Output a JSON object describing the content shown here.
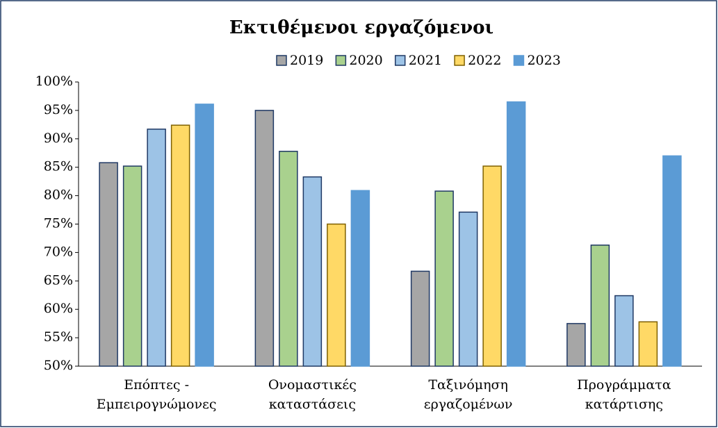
{
  "chart_data": {
    "type": "bar",
    "title": "Εκτιθέμενοι εργαζόμενοι",
    "categories": [
      "Επόπτες - Εμπειρογνώμονες",
      "Ονομαστικές καταστάσεις",
      "Ταξινόμηση εργαζομένων",
      "Προγράμματα κατάρτισης"
    ],
    "series": [
      {
        "name": "2019",
        "color": "#a6a6a6",
        "border": "#1f3864",
        "values": [
          85.8,
          95.0,
          66.7,
          57.5
        ]
      },
      {
        "name": "2020",
        "color": "#a9d18e",
        "border": "#1f3864",
        "values": [
          85.2,
          87.8,
          80.8,
          71.3
        ]
      },
      {
        "name": "2021",
        "color": "#9dc3e6",
        "border": "#1f3864",
        "values": [
          91.7,
          83.3,
          77.1,
          62.4
        ]
      },
      {
        "name": "2022",
        "color": "#ffd966",
        "border": "#7f6000",
        "values": [
          92.4,
          75.0,
          85.2,
          57.8
        ]
      },
      {
        "name": "2023",
        "color": "#5b9bd5",
        "border": "#5b9bd5",
        "values": [
          96.1,
          80.9,
          96.5,
          87.0
        ]
      }
    ],
    "ylim": [
      50,
      100
    ],
    "yticks": [
      {
        "value": 50,
        "label": "50%"
      },
      {
        "value": 55,
        "label": "55%"
      },
      {
        "value": 60,
        "label": "60%"
      },
      {
        "value": 65,
        "label": "65%"
      },
      {
        "value": 70,
        "label": "70%"
      },
      {
        "value": 75,
        "label": "75%"
      },
      {
        "value": 80,
        "label": "80%"
      },
      {
        "value": 85,
        "label": "85%"
      },
      {
        "value": 90,
        "label": "90%"
      },
      {
        "value": 95,
        "label": "95%"
      },
      {
        "value": 100,
        "label": "100%"
      }
    ],
    "grid": false,
    "legend": "top"
  }
}
